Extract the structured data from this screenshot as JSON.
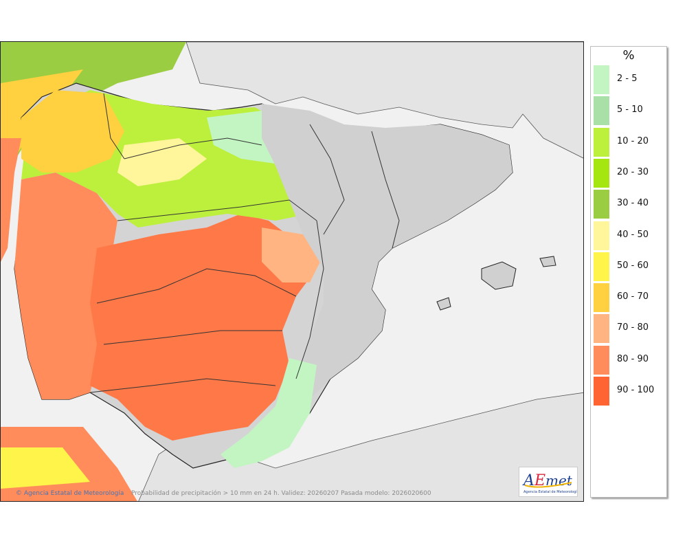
{
  "map": {
    "credit_agency": "Agencia Estatal de Meteorología",
    "credit_info": "Probabilidad de precipitación > 10 mm en 24 h. Validez: 20260207 Pasada modelo: 2026020600",
    "logo_text": "AEmet",
    "logo_subtitle": "Agencia Estatal de Meteorología",
    "colors": {
      "sea": "#f1f1f1",
      "land": "#d4d4d4",
      "border": "#222222"
    }
  },
  "legend": {
    "unit": "%",
    "items": [
      {
        "label": "2 - 5",
        "color": "#c2f5c2"
      },
      {
        "label": "5 - 10",
        "color": "#a8e0a8"
      },
      {
        "label": "10 - 20",
        "color": "#bdf03c"
      },
      {
        "label": "20 - 30",
        "color": "#a5e610"
      },
      {
        "label": "30 - 40",
        "color": "#9acd42"
      },
      {
        "label": "40 - 50",
        "color": "#fff59a"
      },
      {
        "label": "50 - 60",
        "color": "#fff44a"
      },
      {
        "label": "60 - 70",
        "color": "#ffd040"
      },
      {
        "label": "70 - 80",
        "color": "#ffb482"
      },
      {
        "label": "80 - 90",
        "color": "#ff8c5a"
      },
      {
        "label": "90 - 100",
        "color": "#ff6432"
      }
    ]
  }
}
